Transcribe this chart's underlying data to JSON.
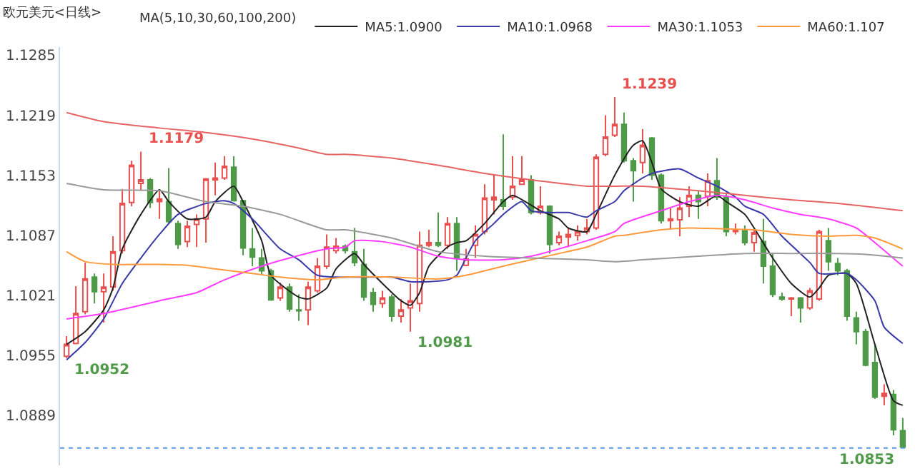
{
  "chart_data": {
    "type": "candlestick",
    "title": "欧元美元<日线>",
    "legend_title": "MA(5,10,30,60,100,200)",
    "legend": "top",
    "tick_labels": "y",
    "categories": [
      null,
      null,
      null,
      null,
      null,
      null,
      null,
      null,
      null,
      null,
      null,
      null,
      null,
      null,
      null,
      null,
      null,
      null,
      null,
      null,
      null,
      null,
      null,
      null,
      null,
      null,
      null,
      null,
      null,
      null,
      null,
      null,
      null,
      null,
      null,
      null,
      null,
      null,
      null,
      null,
      null,
      null,
      null,
      null,
      null,
      null,
      null,
      null,
      null,
      null,
      null,
      null,
      null,
      null,
      null,
      null,
      null,
      null,
      null,
      null,
      null,
      null,
      null,
      null,
      null,
      null,
      null,
      null,
      null,
      null,
      null,
      null,
      null,
      null,
      null,
      null,
      null,
      null,
      null,
      null,
      null,
      null,
      null,
      null,
      null,
      null,
      null,
      null,
      null,
      null,
      null
    ],
    "ylim": [
      1.0834,
      1.1294
    ],
    "yticks": [
      1.0889,
      1.0955,
      1.1021,
      1.1087,
      1.1153,
      1.1219,
      1.1285
    ],
    "series": [
      {
        "type": "line",
        "name": "MA5:1.0900",
        "color": "#222222",
        "values": [
          1.0967,
          null,
          1.0981,
          null,
          1.1005,
          1.1029,
          1.1072,
          null,
          1.111,
          null,
          1.1137,
          1.1124,
          null,
          1.1105,
          null,
          1.1107,
          1.1124,
          null,
          1.1141,
          1.1124,
          null,
          1.1081,
          1.1043,
          null,
          null,
          1.1019,
          1.1017,
          null,
          1.1029,
          1.105,
          null,
          1.1067,
          1.1055,
          null,
          1.1034,
          null,
          1.1015,
          1.101,
          1.1024,
          1.1053,
          null,
          1.1074,
          1.1079,
          1.1081,
          null,
          1.11,
          null,
          1.1124,
          1.1131,
          null,
          null,
          1.1114,
          null,
          1.1105,
          1.1095,
          null,
          1.1091,
          1.111,
          null,
          1.1153,
          null,
          1.1186,
          1.1191,
          1.1167,
          1.1138,
          null,
          1.1124,
          null,
          1.1119,
          null,
          1.1131,
          1.1124,
          null,
          1.111,
          1.1095,
          null,
          1.1062,
          null,
          1.1034,
          null,
          1.1019,
          1.1029,
          1.1043,
          null,
          1.1045,
          1.1034,
          null,
          1.0967,
          null,
          1.0905,
          1.09
        ]
      },
      {
        "type": "line",
        "name": "MA10:1.0968",
        "color": "#3a3aa8",
        "values": [
          1.095,
          null,
          1.0969,
          null,
          1.0995,
          null,
          1.1034,
          null,
          1.1062,
          null,
          1.1088,
          null,
          1.111,
          null,
          null,
          1.1122,
          null,
          1.1125,
          1.1122,
          null,
          1.1105,
          null,
          null,
          1.1072,
          null,
          1.106,
          null,
          1.1043,
          null,
          1.1041,
          null,
          1.1041,
          null,
          1.1041,
          null,
          1.1041,
          null,
          1.1036,
          null,
          1.1036,
          null,
          1.1038,
          1.1043,
          1.1062,
          1.1081,
          null,
          1.11,
          1.111,
          null,
          1.1124,
          1.1114,
          null,
          1.1112,
          null,
          1.1112,
          null,
          1.1107,
          1.1114,
          null,
          1.1124,
          1.1136,
          null,
          1.115,
          1.1155,
          null,
          null,
          1.116,
          null,
          1.115,
          null,
          1.1141,
          null,
          1.1129,
          1.1119,
          null,
          1.111,
          null,
          1.1086,
          null,
          null,
          1.1057,
          1.1045,
          null,
          null,
          1.1045,
          1.1038,
          null,
          1.1015,
          1.0986,
          null,
          1.0968
        ]
      },
      {
        "type": "line",
        "name": "MA30:1.1053",
        "color": "#ff3cff",
        "values": [
          1.0995,
          null,
          null,
          null,
          1.1001,
          null,
          null,
          null,
          null,
          null,
          1.1015,
          null,
          null,
          null,
          1.1024,
          null,
          null,
          1.1038,
          null,
          null,
          null,
          1.1053,
          null,
          null,
          1.1062,
          null,
          null,
          null,
          1.1072,
          null,
          1.1074,
          1.1081,
          null,
          null,
          1.108,
          null,
          null,
          1.1074,
          null,
          null,
          1.1064,
          null,
          null,
          1.106,
          null,
          null,
          null,
          1.106,
          null,
          null,
          1.1064,
          null,
          null,
          1.1072,
          null,
          null,
          1.1081,
          null,
          null,
          1.1091,
          1.11,
          null,
          null,
          null,
          1.1114,
          null,
          null,
          1.1124,
          null,
          null,
          1.1131,
          null,
          null,
          1.1126,
          null,
          null,
          1.1117,
          null,
          null,
          1.111,
          null,
          null,
          1.1105,
          null,
          null,
          1.1095,
          null,
          1.1079,
          null,
          null,
          1.1053
        ]
      },
      {
        "type": "line",
        "name": "MA60:1.107",
        "color": "#ff9a3c",
        "values": [
          1.1069,
          null,
          1.1058,
          null,
          null,
          1.1055,
          null,
          null,
          null,
          null,
          1.1055,
          null,
          null,
          1.1054,
          null,
          null,
          1.105,
          null,
          null,
          null,
          1.1045,
          null,
          null,
          1.1041,
          null,
          null,
          null,
          1.1038,
          null,
          null,
          1.1041,
          null,
          null,
          null,
          null,
          1.1041,
          null,
          null,
          null,
          null,
          1.1039,
          null,
          null,
          1.1043,
          null,
          null,
          null,
          1.1053,
          null,
          null,
          1.106,
          null,
          null,
          1.1067,
          null,
          null,
          1.1074,
          null,
          null,
          1.1086,
          1.1087,
          null,
          null,
          null,
          1.1093,
          null,
          null,
          1.1095,
          null,
          null,
          null,
          1.1094,
          null,
          null,
          1.1093,
          null,
          null,
          null,
          1.1088,
          null,
          null,
          null,
          1.1086,
          null,
          null,
          1.1087,
          null,
          1.1084,
          null,
          null,
          1.1072
        ]
      },
      {
        "type": "line",
        "color": "#9a9a9a",
        "values": [
          1.1144,
          null,
          null,
          null,
          1.1137,
          null,
          null,
          null,
          null,
          null,
          1.1136,
          null,
          null,
          null,
          null,
          1.1124,
          null,
          null,
          null,
          1.1119,
          null,
          null,
          null,
          1.111,
          null,
          null,
          null,
          null,
          1.1093,
          null,
          1.1093,
          null,
          null,
          null,
          null,
          1.1084,
          null,
          null,
          null,
          null,
          1.1069,
          null,
          null,
          null,
          null,
          1.1064,
          null,
          null,
          null,
          null,
          1.1062,
          null,
          null,
          null,
          null,
          null,
          1.106,
          null,
          null,
          1.1058,
          null,
          null,
          1.106,
          null,
          null,
          null,
          null,
          null,
          1.1064,
          null,
          null,
          null,
          null,
          1.1067,
          null,
          null,
          null,
          null,
          1.1067,
          null,
          null,
          null,
          null,
          1.1067,
          null,
          null,
          1.1066,
          null,
          null,
          null,
          1.1062
        ]
      },
      {
        "type": "line",
        "color": "#e66464",
        "values": [
          1.1222,
          null,
          null,
          null,
          1.1212,
          null,
          null,
          null,
          null,
          null,
          1.1205,
          null,
          null,
          null,
          null,
          1.12,
          null,
          null,
          null,
          null,
          1.1193,
          null,
          null,
          null,
          null,
          1.1183,
          null,
          null,
          1.1176,
          null,
          1.1176,
          null,
          null,
          null,
          null,
          1.1172,
          null,
          null,
          null,
          null,
          1.1164,
          null,
          null,
          null,
          null,
          1.1155,
          null,
          null,
          null,
          null,
          1.1148,
          null,
          null,
          null,
          null,
          null,
          1.1141,
          null,
          null,
          1.1141,
          null,
          null,
          1.1141,
          null,
          null,
          null,
          null,
          null,
          1.1136,
          null,
          null,
          null,
          null,
          1.1131,
          null,
          null,
          null,
          null,
          1.1126,
          null,
          null,
          null,
          null,
          1.1122,
          null,
          null,
          null,
          null,
          null,
          null,
          1.1114
        ]
      },
      {
        "colors": [
          "#e8504f",
          "#e8504f",
          "#e8504f",
          "#4e9a48",
          "#e8504f",
          "#e8504f",
          "#e8504f",
          "#e8504f",
          "#e8504f",
          "#4e9a48",
          "#e8504f",
          "#4e9a48",
          "#4e9a48",
          "#e8504f",
          "#e8504f",
          "#e8504f",
          "#e8504f",
          "#e8504f",
          "#4e9a48",
          "#4e9a48",
          "#4e9a48",
          "#4e9a48",
          "#4e9a48",
          "#e8504f",
          "#4e9a48",
          "#4e9a48",
          "#e8504f",
          "#e8504f",
          "#e8504f",
          "#e8504f",
          "#4e9a48",
          "#4e9a48",
          "#4e9a48",
          "#4e9a48",
          "#e8504f",
          "#4e9a48",
          "#e8504f",
          "#e8504f",
          "#e8504f",
          "#e8504f",
          "#4e9a48",
          "#e8504f",
          "#4e9a48",
          "#e8504f",
          "#e8504f",
          "#e8504f",
          "#e8504f",
          "#4e9a48",
          "#e8504f",
          "#e8504f",
          "#4e9a48",
          "#e8504f",
          "#4e9a48",
          "#e8504f",
          "#e8504f",
          "#e8504f",
          "#e8504f",
          "#e8504f",
          "#e8504f",
          "#e8504f",
          "#4e9a48",
          "#4e9a48",
          "#e8504f",
          "#4e9a48",
          "#4e9a48",
          "#e8504f",
          "#e8504f",
          "#e8504f",
          "#4e9a48",
          "#e8504f",
          "#4e9a48",
          "#4e9a48",
          "#e8504f",
          "#4e9a48",
          "#e8504f",
          "#4e9a48",
          "#4e9a48",
          "#4e9a48",
          "#e8504f",
          "#4e9a48",
          "#e8504f",
          "#e8504f",
          "#4e9a48",
          "#4e9a48",
          "#4e9a48",
          "#4e9a48",
          "#4e9a48",
          "#4e9a48",
          "#e8504f",
          "#4e9a48",
          "#4e9a48"
        ],
        "ohlc": [
          [
            1.0954,
            1.0976,
            1.0952,
            1.0967
          ],
          [
            1.0968,
            1.1031,
            1.0967,
            1.1001
          ],
          [
            1.1003,
            1.1057,
            1.1,
            1.1039
          ],
          [
            1.1041,
            1.1045,
            1.1012,
            1.1025
          ],
          [
            1.1025,
            1.1045,
            1.0991,
            1.103
          ],
          [
            1.103,
            1.1086,
            1.1026,
            1.1069
          ],
          [
            1.107,
            1.1138,
            1.1067,
            1.1122
          ],
          [
            1.1123,
            1.1169,
            1.1119,
            1.1164
          ],
          [
            1.1144,
            1.1179,
            1.1136,
            1.1148
          ],
          [
            1.1148,
            1.115,
            1.1117,
            1.1123
          ],
          [
            1.1124,
            1.1137,
            1.1105,
            1.1127
          ],
          [
            1.1124,
            1.1161,
            1.11,
            1.1102
          ],
          [
            1.11,
            1.1103,
            1.1072,
            1.1077
          ],
          [
            1.108,
            1.1103,
            1.1074,
            1.1097
          ],
          [
            1.1099,
            1.111,
            1.1074,
            1.1105
          ],
          [
            1.1105,
            1.115,
            1.1079,
            1.1149
          ],
          [
            1.1148,
            1.1167,
            1.1131,
            1.115
          ],
          [
            1.115,
            1.1174,
            1.1148,
            1.1163
          ],
          [
            1.1162,
            1.1174,
            1.1124,
            1.1125
          ],
          [
            1.1125,
            1.1126,
            1.1065,
            1.1073
          ],
          [
            1.1072,
            1.1095,
            1.1053,
            1.1063
          ],
          [
            1.1062,
            1.1072,
            1.1043,
            1.1048
          ],
          [
            1.1048,
            1.105,
            1.1015,
            1.1016
          ],
          [
            1.1018,
            1.1035,
            1.1015,
            1.103
          ],
          [
            1.103,
            1.1034,
            1.1003,
            1.1006
          ],
          [
            1.1005,
            1.1022,
            1.0993,
            1.1004
          ],
          [
            1.1005,
            1.1036,
            1.0988,
            1.103
          ],
          [
            1.1026,
            1.1062,
            1.1024,
            1.1053
          ],
          [
            1.1053,
            1.1088,
            1.105,
            1.1074
          ],
          [
            1.107,
            1.1084,
            1.1067,
            1.1075
          ],
          [
            1.1075,
            1.1077,
            1.1067,
            1.107
          ],
          [
            1.1069,
            1.1095,
            1.1053,
            1.1057
          ],
          [
            1.1055,
            1.1072,
            1.1015,
            1.1019
          ],
          [
            1.1024,
            1.1029,
            1.1003,
            1.1011
          ],
          [
            1.1012,
            1.1026,
            1.1007,
            1.1018
          ],
          [
            1.1019,
            1.1022,
            1.0992,
            1.0998
          ],
          [
            1.0998,
            1.1017,
            1.0991,
            1.1005
          ],
          [
            1.1007,
            1.1034,
            1.0981,
            1.1015
          ],
          [
            1.1012,
            1.1091,
            1.1003,
            1.1076
          ],
          [
            1.1076,
            1.1093,
            1.1074,
            1.1079
          ],
          [
            1.1079,
            1.1112,
            1.1074,
            1.1076
          ],
          [
            1.1076,
            1.1107,
            1.1072,
            1.11
          ],
          [
            1.11,
            1.1107,
            1.1048,
            1.1062
          ],
          [
            1.1054,
            1.1072,
            1.1053,
            1.1061
          ],
          [
            1.1076,
            1.1098,
            1.1062,
            1.1088
          ],
          [
            1.1091,
            1.1143,
            1.1088,
            1.1128
          ],
          [
            1.1126,
            1.1153,
            1.111,
            1.1129
          ],
          [
            1.1126,
            1.1198,
            1.1115,
            1.1119
          ],
          [
            1.1129,
            1.1174,
            1.1126,
            1.1141
          ],
          [
            1.1143,
            1.1174,
            1.1143,
            1.1148
          ],
          [
            1.1148,
            1.1153,
            1.111,
            1.1112
          ],
          [
            1.1112,
            1.1141,
            1.111,
            1.1119
          ],
          [
            1.1119,
            1.112,
            1.1067,
            1.1077
          ],
          [
            1.1079,
            1.1091,
            1.1076,
            1.1086
          ],
          [
            1.1085,
            1.1095,
            1.1074,
            1.1088
          ],
          [
            1.1087,
            1.1098,
            1.1081,
            1.1091
          ],
          [
            1.1091,
            1.1105,
            1.1088,
            1.1095
          ],
          [
            1.1095,
            1.1176,
            1.1093,
            1.1173
          ],
          [
            1.1176,
            1.1219,
            1.1174,
            1.1195
          ],
          [
            1.1197,
            1.1239,
            1.1195,
            1.1209
          ],
          [
            1.1209,
            1.1222,
            1.1167,
            1.1169
          ],
          [
            1.1169,
            1.1172,
            1.1124,
            1.1158
          ],
          [
            1.1167,
            1.1204,
            1.1155,
            1.1186
          ],
          [
            1.1194,
            1.1195,
            1.1148,
            1.1153
          ],
          [
            1.1153,
            1.1155,
            1.11,
            1.1103
          ],
          [
            1.1103,
            1.1117,
            1.1093,
            1.1105
          ],
          [
            1.1104,
            1.1129,
            1.1086,
            1.1117
          ],
          [
            1.1119,
            1.1141,
            1.1107,
            1.1131
          ],
          [
            1.1131,
            1.1136,
            1.1105,
            1.1124
          ],
          [
            1.113,
            1.1155,
            1.1119,
            1.1147
          ],
          [
            1.1147,
            1.1172,
            1.1126,
            1.1129
          ],
          [
            1.1129,
            1.1134,
            1.1086,
            1.1091
          ],
          [
            1.1091,
            1.11,
            1.1088,
            1.1093
          ],
          [
            1.1092,
            1.1098,
            1.1076,
            1.1079
          ],
          [
            1.1079,
            1.1093,
            1.1069,
            1.109
          ],
          [
            1.108,
            1.1105,
            1.1034,
            1.1053
          ],
          [
            1.1053,
            1.1067,
            1.1019,
            1.1022
          ],
          [
            1.1019,
            1.1024,
            1.1015,
            1.1017
          ],
          [
            1.1017,
            1.1019,
            1.0998,
            1.1018
          ],
          [
            1.1018,
            1.1019,
            1.0991,
            1.1007
          ],
          [
            1.1007,
            1.1029,
            1.1005,
            1.1026
          ],
          [
            1.1017,
            1.1093,
            1.1015,
            1.1091
          ],
          [
            1.1081,
            1.1095,
            1.1048,
            1.1058
          ],
          [
            1.1056,
            1.1062,
            1.1043,
            1.1048
          ],
          [
            1.1048,
            1.105,
            1.0993,
            1.0998
          ],
          [
            1.0996,
            1.1003,
            1.0967,
            1.0981
          ],
          [
            1.0981,
            1.0984,
            1.0943,
            1.0944
          ],
          [
            1.0947,
            1.0967,
            1.0907,
            1.0909
          ],
          [
            1.091,
            1.0923,
            1.09,
            1.0913
          ],
          [
            1.0912,
            1.0917,
            1.0867,
            1.0873
          ],
          [
            1.0872,
            1.0886,
            1.0853,
            1.0854
          ]
        ]
      }
    ],
    "ref_lines": [
      {
        "axis": "y",
        "value": 1.0853,
        "color": "#5b9be6",
        "line_style": "dotted"
      }
    ],
    "annotations": [
      "1.0952",
      "1.1179",
      "1.0981",
      "1.1239",
      {
        "text": "1.0853",
        "y": 1.0853
      }
    ]
  }
}
